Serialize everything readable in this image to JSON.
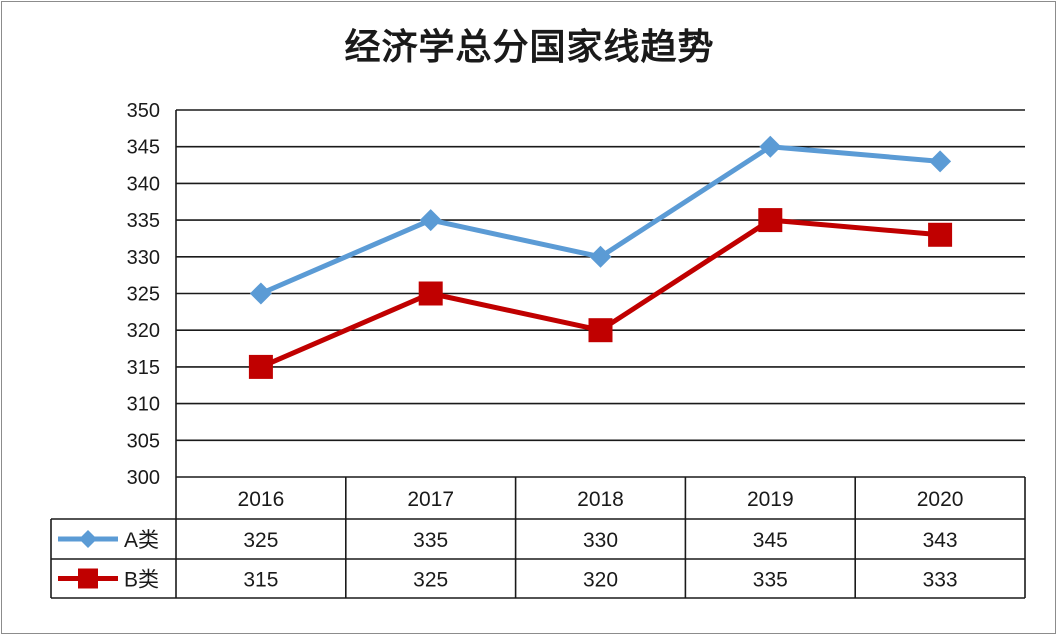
{
  "title": "经济学总分国家线趋势",
  "chart_data": {
    "type": "line",
    "title": "经济学总分国家线趋势",
    "categories": [
      "2016",
      "2017",
      "2018",
      "2019",
      "2020"
    ],
    "series": [
      {
        "name": "A类",
        "values": [
          325,
          335,
          330,
          345,
          343
        ],
        "color": "#5b9bd5",
        "marker": "diamond"
      },
      {
        "name": "B类",
        "values": [
          315,
          325,
          320,
          335,
          333
        ],
        "color": "#c00000",
        "marker": "square"
      }
    ],
    "ylim": [
      300,
      350
    ],
    "yticks": [
      "300",
      "305",
      "310",
      "315",
      "320",
      "325",
      "330",
      "335",
      "340",
      "345",
      "350"
    ],
    "grid": true,
    "legend": "data-table"
  }
}
